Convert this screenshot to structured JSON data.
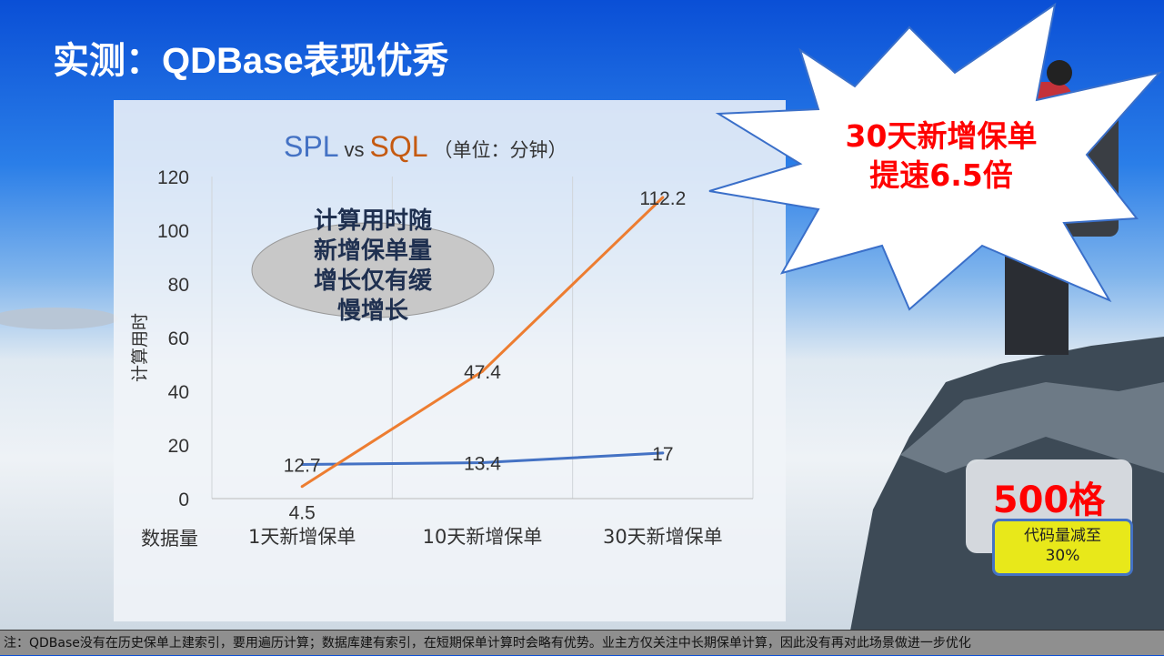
{
  "title": "实测：QDBase表现优秀",
  "callout": {
    "line1": "30天新增保单",
    "line2": "提速6.5倍"
  },
  "stat": {
    "value": "500格",
    "label_line1": "代码量减至",
    "label_line2": "30%"
  },
  "footnote": "注：QDBase没有在历史保单上建索引，要用遍历计算；数据库建有索引，在短期保单计算时会略有优势。业主方仅关注中长期保单计算，因此没有再对此场景做进一步优化",
  "chart_data": {
    "type": "line",
    "title_parts": {
      "a": "SPL",
      "vs": "vs",
      "b": "SQL",
      "unit": "（单位：分钟）"
    },
    "xlabel": "数据量",
    "ylabel": "计算用时",
    "categories": [
      "1天新增保单",
      "10天新增保单",
      "30天新增保单"
    ],
    "ylim": [
      0,
      120
    ],
    "yticks": [
      0,
      20,
      40,
      60,
      80,
      100,
      120
    ],
    "grid": "vertical",
    "series": [
      {
        "name": "SPL",
        "color": "#4472c4",
        "values": [
          12.7,
          13.4,
          17
        ]
      },
      {
        "name": "SQL",
        "color": "#ed7d31",
        "values": [
          4.5,
          47.4,
          112.2
        ]
      }
    ],
    "annotation": [
      "计算用时随",
      "新增保单量",
      "增长仅有缓",
      "慢增长"
    ]
  }
}
